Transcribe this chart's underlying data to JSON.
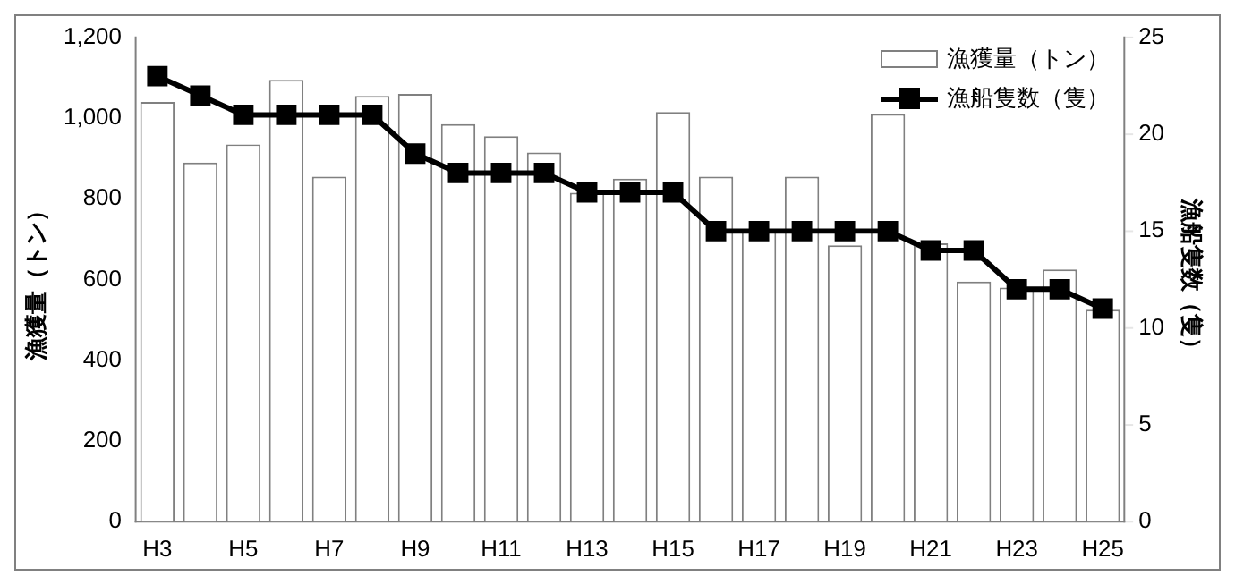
{
  "chart_data": {
    "type": "bar",
    "categories": [
      "H3",
      null,
      "H5",
      null,
      "H7",
      null,
      "H9",
      null,
      "H11",
      null,
      "H13",
      null,
      "H15",
      null,
      "H17",
      null,
      "H19",
      null,
      "H21",
      null,
      "H23",
      null,
      "H25"
    ],
    "ylabel": "漁獲量（トン）",
    "y2label": "漁船隻数（隻）",
    "series": [
      {
        "name": "漁獲量（トン）",
        "type": "bar",
        "color": "#ffffff",
        "values": [
          1040,
          890,
          935,
          1095,
          855,
          1055,
          1060,
          985,
          955,
          915,
          815,
          850,
          1015,
          855,
          720,
          855,
          685,
          1010,
          690,
          595,
          580,
          625,
          525
        ]
      },
      {
        "name": "漁船隻数（隻）",
        "type": "line",
        "axis": "y2",
        "color": "#000000",
        "marker": "square",
        "values": [
          23,
          22,
          21,
          21,
          21,
          21,
          19,
          18,
          18,
          18,
          17,
          17,
          17,
          15,
          15,
          15,
          15,
          15,
          14,
          14,
          12,
          12,
          11
        ]
      }
    ],
    "ylim": [
      0,
      1200
    ],
    "yticks": [
      {
        "value": 0,
        "label": "0"
      },
      {
        "value": 200,
        "label": "200"
      },
      {
        "value": 400,
        "label": "400"
      },
      {
        "value": 600,
        "label": "600"
      },
      {
        "value": 800,
        "label": "800"
      },
      {
        "value": 1000,
        "label": "1,000"
      },
      {
        "value": 1200,
        "label": "1,200"
      }
    ],
    "y2lim": [
      0,
      25
    ],
    "y2ticks": [
      0,
      5,
      10,
      15,
      20,
      25
    ],
    "grid": false,
    "legend": "top right"
  }
}
